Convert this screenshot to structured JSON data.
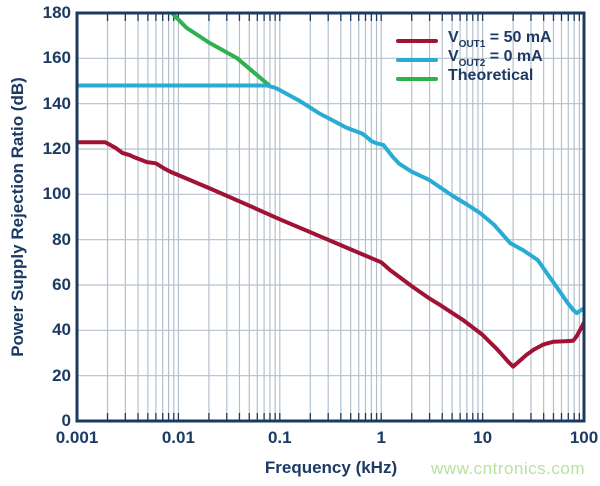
{
  "watermark": {
    "text": "www.cntronics.com",
    "color": "#b7e2a0"
  },
  "colors": {
    "axis": "#1b3a5f",
    "grid": "#b4c1cd",
    "text": "#1c3a63",
    "background": "#ffffff"
  },
  "chart_data": {
    "type": "line",
    "title": "",
    "xlabel": "Frequency (kHz)",
    "ylabel": "Power Supply Rejection Ratio (dB)",
    "x_axis": {
      "scale": "log",
      "min": 0.001,
      "max": 100,
      "ticks": [
        {
          "label": "0.001",
          "value": 0.001
        },
        {
          "label": "0.01",
          "value": 0.01
        },
        {
          "label": "0.1",
          "value": 0.1
        },
        {
          "label": "1",
          "value": 1
        },
        {
          "label": "10",
          "value": 10
        },
        {
          "label": "100",
          "value": 100
        }
      ],
      "minor_gridlines": true
    },
    "y_axis": {
      "min": 0,
      "max": 180,
      "tick_step": 20,
      "ticks": [
        {
          "label": "0",
          "value": 0
        },
        {
          "label": "20",
          "value": 20
        },
        {
          "label": "40",
          "value": 40
        },
        {
          "label": "60",
          "value": 60
        },
        {
          "label": "80",
          "value": 80
        },
        {
          "label": "100",
          "value": 100
        },
        {
          "label": "120",
          "value": 120
        },
        {
          "label": "140",
          "value": 140
        },
        {
          "label": "160",
          "value": 160
        },
        {
          "label": "180",
          "value": 180
        }
      ]
    },
    "grid": true,
    "legend_position": "top-right",
    "series": [
      {
        "name": "VOUT1 = 50 mA",
        "legend": {
          "prefix": "V",
          "sub": "OUT1",
          "rest": " = 50 mA"
        },
        "color": "#a01334",
        "points": [
          [
            0.001,
            123
          ],
          [
            0.0019,
            123
          ],
          [
            0.0024,
            120.5
          ],
          [
            0.0028,
            118.3
          ],
          [
            0.0033,
            117.3
          ],
          [
            0.0037,
            116.3
          ],
          [
            0.0049,
            114.2
          ],
          [
            0.006,
            113.7
          ],
          [
            0.0072,
            111.5
          ],
          [
            0.0085,
            109.8
          ],
          [
            0.01,
            108.5
          ],
          [
            0.02,
            102.8
          ],
          [
            0.05,
            95
          ],
          [
            0.1,
            89
          ],
          [
            0.2,
            83.3
          ],
          [
            0.5,
            75.7
          ],
          [
            1,
            70
          ],
          [
            1.22,
            66.6
          ],
          [
            2,
            59.5
          ],
          [
            3,
            54
          ],
          [
            3.8,
            51.2
          ],
          [
            6.4,
            44.6
          ],
          [
            10,
            38
          ],
          [
            14,
            31.5
          ],
          [
            18,
            26
          ],
          [
            20,
            24
          ],
          [
            27,
            29.1
          ],
          [
            32,
            31.5
          ],
          [
            40,
            33.8
          ],
          [
            50,
            35
          ],
          [
            65,
            35.2
          ],
          [
            78,
            35.4
          ],
          [
            85,
            37.5
          ],
          [
            95,
            41.5
          ],
          [
            100,
            43.5
          ]
        ]
      },
      {
        "name": "VOUT2 = 0 mA",
        "legend": {
          "prefix": "V",
          "sub": "OUT2",
          "rest": " = 0 mA"
        },
        "color": "#29acd4",
        "points": [
          [
            0.001,
            148
          ],
          [
            0.075,
            148
          ],
          [
            0.09,
            147
          ],
          [
            0.1,
            146
          ],
          [
            0.16,
            141
          ],
          [
            0.25,
            135.5
          ],
          [
            0.37,
            131.5
          ],
          [
            0.45,
            129.5
          ],
          [
            0.55,
            128
          ],
          [
            0.65,
            126.8
          ],
          [
            0.72,
            125.3
          ],
          [
            0.8,
            123.5
          ],
          [
            0.9,
            122.5
          ],
          [
            1.05,
            121.8
          ],
          [
            1.3,
            116.5
          ],
          [
            1.5,
            113.5
          ],
          [
            2,
            110
          ],
          [
            3,
            106.3
          ],
          [
            5,
            99.5
          ],
          [
            7,
            95.5
          ],
          [
            9.4,
            91.8
          ],
          [
            13,
            86.5
          ],
          [
            18.7,
            78.5
          ],
          [
            25,
            75.4
          ],
          [
            30,
            73
          ],
          [
            35,
            71
          ],
          [
            45,
            64
          ],
          [
            54,
            59
          ],
          [
            68,
            52.5
          ],
          [
            78,
            49
          ],
          [
            85,
            47.6
          ],
          [
            100,
            49.8
          ]
        ]
      },
      {
        "name": "Theoretical",
        "legend": {
          "prefix": "Theoretical",
          "sub": "",
          "rest": ""
        },
        "color": "#2fb14f",
        "points": [
          [
            0.0082,
            181
          ],
          [
            0.012,
            173.5
          ],
          [
            0.02,
            167
          ],
          [
            0.038,
            160
          ],
          [
            0.06,
            152.5
          ],
          [
            0.078,
            148.2
          ]
        ]
      }
    ]
  }
}
